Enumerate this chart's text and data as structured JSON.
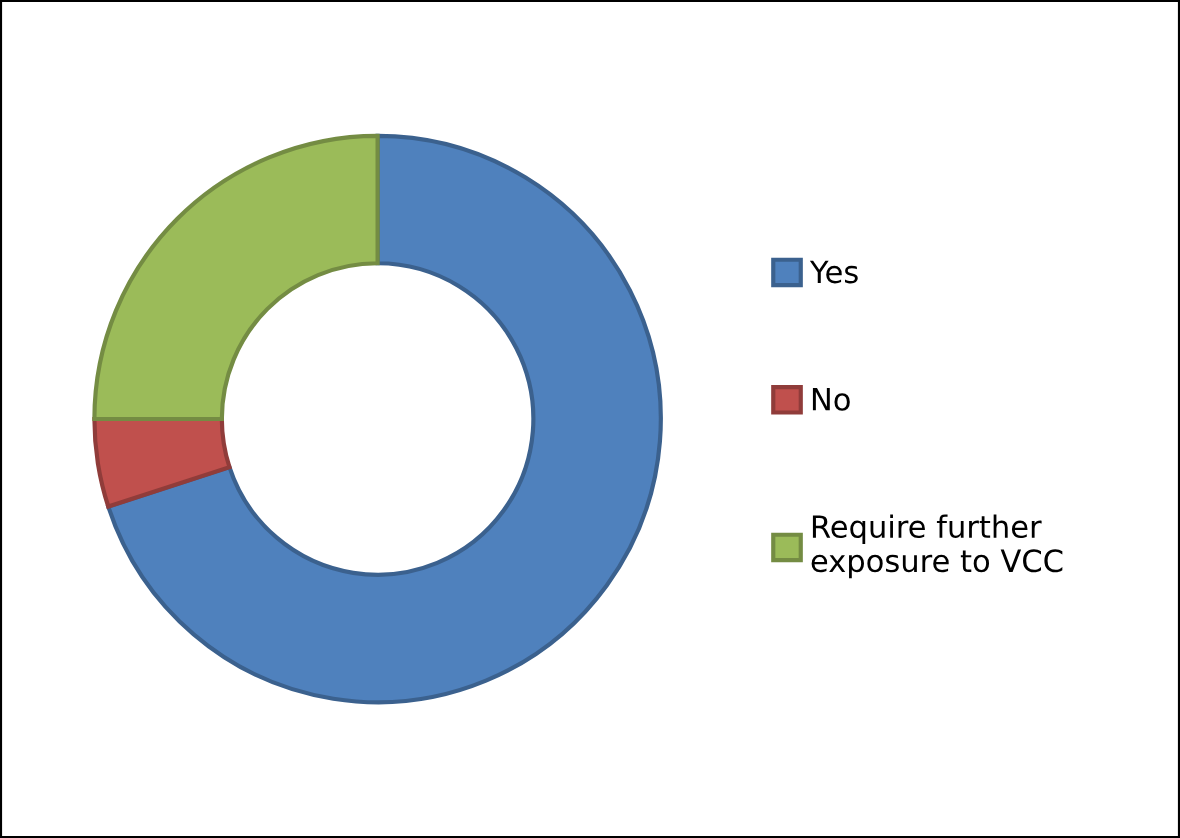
{
  "chart_data": {
    "type": "donut",
    "categories": [
      "Yes",
      "No",
      "Require further exposure to VCC"
    ],
    "values": [
      70,
      5,
      25
    ],
    "colors": [
      "#4f81bd",
      "#c0504d",
      "#9bbb59"
    ],
    "legend": "right"
  }
}
